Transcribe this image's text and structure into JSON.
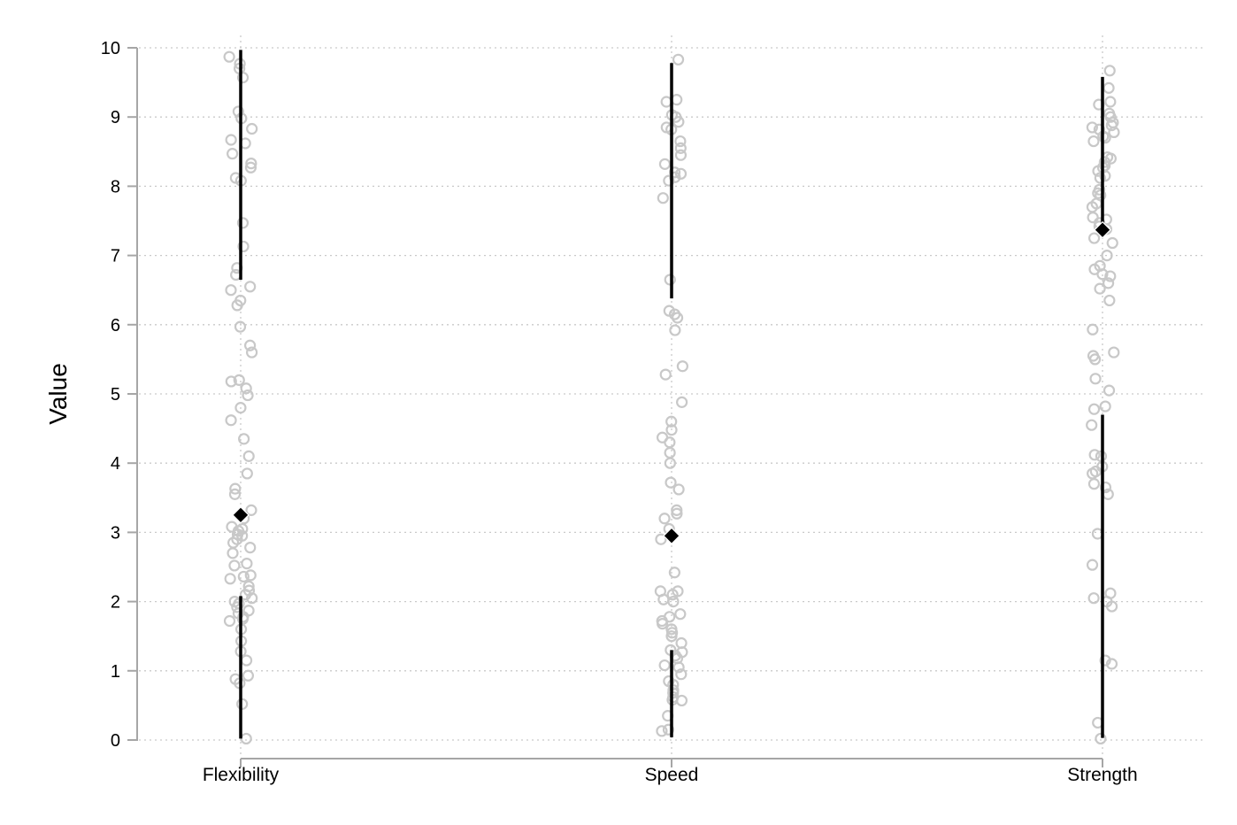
{
  "chart_data": {
    "type": "scatter",
    "title": "",
    "xlabel": "",
    "ylabel": "Value",
    "categories": [
      "Flexibility",
      "Speed",
      "Strength"
    ],
    "ylim": [
      0,
      10
    ],
    "yticks": [
      0,
      1,
      2,
      3,
      4,
      5,
      6,
      7,
      8,
      9,
      10
    ],
    "grid": "horizontal dotted at y ticks, vertical dotted at categories",
    "colors": {
      "points": "#c8c8c8",
      "mean_marker": "#000000",
      "range_line": "#000000",
      "axis": "#a6a6a6",
      "grid": "#c9c9c9"
    },
    "series": [
      {
        "category": "Flexibility",
        "mean": 3.25,
        "upper_line": [
          6.65,
          9.97
        ],
        "lower_line": [
          0.02,
          2.08
        ],
        "points": [
          0.02,
          0.52,
          0.82,
          0.88,
          0.93,
          1.15,
          1.28,
          1.43,
          1.6,
          1.72,
          1.75,
          1.78,
          1.83,
          1.87,
          1.92,
          1.97,
          2.0,
          2.05,
          2.1,
          2.16,
          2.22,
          2.33,
          2.36,
          2.38,
          2.52,
          2.55,
          2.7,
          2.78,
          2.85,
          2.9,
          2.95,
          2.97,
          3.02,
          3.05,
          3.08,
          3.2,
          3.32,
          3.55,
          3.63,
          3.85,
          4.1,
          4.35,
          4.62,
          4.8,
          4.98,
          5.08,
          5.18,
          5.2,
          5.6,
          5.7,
          5.97,
          6.28,
          6.35,
          6.5,
          6.55,
          6.72,
          6.82,
          7.13,
          7.47,
          8.08,
          8.12,
          8.27,
          8.33,
          8.47,
          8.62,
          8.67,
          8.83,
          8.98,
          9.08,
          9.57,
          9.7,
          9.77,
          9.87
        ]
      },
      {
        "category": "Speed",
        "mean": 2.95,
        "upper_line": [
          6.38,
          9.78
        ],
        "lower_line": [
          0.04,
          1.3
        ],
        "points": [
          0.13,
          0.15,
          0.35,
          0.57,
          0.58,
          0.62,
          0.68,
          0.72,
          0.8,
          0.85,
          0.95,
          1.05,
          1.08,
          1.18,
          1.22,
          1.27,
          1.3,
          1.4,
          1.5,
          1.55,
          1.6,
          1.68,
          1.72,
          1.78,
          1.82,
          2.0,
          2.03,
          2.1,
          2.15,
          2.15,
          2.42,
          2.9,
          3.05,
          3.2,
          3.27,
          3.32,
          3.62,
          3.72,
          4.0,
          4.15,
          4.3,
          4.37,
          4.48,
          4.6,
          4.88,
          5.28,
          5.4,
          5.92,
          6.1,
          6.15,
          6.2,
          6.65,
          7.83,
          8.08,
          8.13,
          8.18,
          8.2,
          8.32,
          8.45,
          8.55,
          8.65,
          8.82,
          8.85,
          8.93,
          9.0,
          9.03,
          9.22,
          9.25,
          9.83
        ]
      },
      {
        "category": "Strength",
        "mean": 7.37,
        "upper_line": [
          7.37,
          9.58
        ],
        "lower_line": [
          0.03,
          4.7
        ],
        "points": [
          0.02,
          0.25,
          1.1,
          1.15,
          1.93,
          2.0,
          2.05,
          2.12,
          2.53,
          2.98,
          3.55,
          3.65,
          3.7,
          3.85,
          3.88,
          3.95,
          4.1,
          4.12,
          4.55,
          4.78,
          4.82,
          5.05,
          5.22,
          5.5,
          5.55,
          5.6,
          5.93,
          6.35,
          6.52,
          6.6,
          6.7,
          6.73,
          6.8,
          6.85,
          7.0,
          7.18,
          7.25,
          7.38,
          7.42,
          7.47,
          7.52,
          7.55,
          7.7,
          7.75,
          7.87,
          7.9,
          7.95,
          8.12,
          8.15,
          8.22,
          8.27,
          8.3,
          8.35,
          8.4,
          8.42,
          8.65,
          8.7,
          8.72,
          8.78,
          8.82,
          8.85,
          8.88,
          8.92,
          9.0,
          9.05,
          9.18,
          9.22,
          9.42,
          9.67
        ]
      }
    ]
  }
}
